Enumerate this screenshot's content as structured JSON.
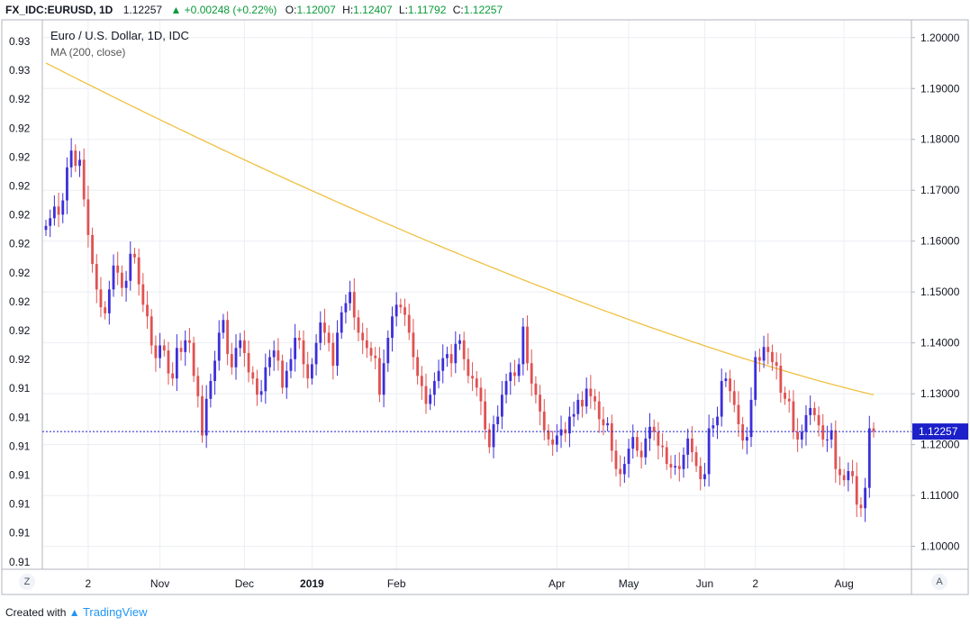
{
  "header": {
    "symbol": "FX_IDC:EURUSD, 1D",
    "last": "1.12257",
    "change": "+0.00248 (+0.22%)",
    "open_label": "O:",
    "open": "1.12007",
    "high_label": "H:",
    "high": "1.12407",
    "low_label": "L:",
    "low": "1.11792",
    "close_label": "C:",
    "close": "1.12257"
  },
  "legend": {
    "title": "Euro / U.S. Dollar, 1D, IDC",
    "indicator": "MA (200, close)"
  },
  "colors": {
    "up": "#3d2fd8",
    "down": "#e05252",
    "ma": "#f0c040",
    "price_tag": "#1c20c9",
    "grid": "#ebeef3"
  },
  "chart_data": {
    "type": "candlestick",
    "title": "Euro / U.S. Dollar, 1D, IDC",
    "left_axis_ticks": [
      "0.93",
      "0.93",
      "0.92",
      "0.92",
      "0.92",
      "0.92",
      "0.92",
      "0.92",
      "0.92",
      "0.92",
      "0.92",
      "0.92",
      "0.91",
      "0.91",
      "0.91",
      "0.91",
      "0.91",
      "0.91",
      "0.91"
    ],
    "right_axis_ticks": [
      "1.20000",
      "1.19000",
      "1.18000",
      "1.17000",
      "1.16000",
      "1.15000",
      "1.14000",
      "1.13000",
      "1.12000",
      "1.11000",
      "1.10000"
    ],
    "ylim": [
      1.0955,
      1.2035
    ],
    "x_ticks": [
      {
        "label": "2",
        "index": 10
      },
      {
        "label": "Nov",
        "index": 27
      },
      {
        "label": "Dec",
        "index": 47
      },
      {
        "label": "2019",
        "index": 63
      },
      {
        "label": "Feb",
        "index": 83
      },
      {
        "label": "Apr",
        "index": 121
      },
      {
        "label": "May",
        "index": 138
      },
      {
        "label": "Jun",
        "index": 156
      },
      {
        "label": "2",
        "index": 168
      },
      {
        "label": "Aug",
        "index": 189
      }
    ],
    "last_price": 1.12257,
    "last_price_label": "1.12257",
    "closes": [
      1.163,
      1.1645,
      1.1668,
      1.1652,
      1.168,
      1.1745,
      1.1778,
      1.1748,
      1.176,
      1.1682,
      1.1612,
      1.1555,
      1.1505,
      1.147,
      1.1458,
      1.1505,
      1.1552,
      1.1538,
      1.1508,
      1.1522,
      1.1575,
      1.1568,
      1.1515,
      1.1475,
      1.1452,
      1.1395,
      1.137,
      1.1395,
      1.1385,
      1.134,
      1.133,
      1.139,
      1.1382,
      1.1405,
      1.14,
      1.1335,
      1.1295,
      1.1218,
      1.129,
      1.1325,
      1.1365,
      1.142,
      1.1445,
      1.1378,
      1.1352,
      1.139,
      1.1405,
      1.138,
      1.1342,
      1.133,
      1.1298,
      1.1305,
      1.1352,
      1.1372,
      1.1385,
      1.1365,
      1.1312,
      1.1345,
      1.1368,
      1.141,
      1.1405,
      1.1358,
      1.133,
      1.1358,
      1.14,
      1.144,
      1.142,
      1.14,
      1.1355,
      1.142,
      1.146,
      1.1478,
      1.15,
      1.145,
      1.142,
      1.1405,
      1.139,
      1.1375,
      1.137,
      1.1298,
      1.136,
      1.141,
      1.1452,
      1.1475,
      1.147,
      1.1455,
      1.142,
      1.1372,
      1.1335,
      1.1315,
      1.128,
      1.1298,
      1.1325,
      1.1345,
      1.137,
      1.1378,
      1.136,
      1.1398,
      1.1405,
      1.1368,
      1.1335,
      1.133,
      1.1312,
      1.1285,
      1.123,
      1.1195,
      1.124,
      1.1255,
      1.1298,
      1.1325,
      1.1342,
      1.1335,
      1.1358,
      1.1432,
      1.136,
      1.132,
      1.1298,
      1.1265,
      1.1228,
      1.121,
      1.12,
      1.1218,
      1.123,
      1.1222,
      1.1255,
      1.126,
      1.1288,
      1.1275,
      1.131,
      1.1295,
      1.1285,
      1.125,
      1.1238,
      1.1242,
      1.1188,
      1.1152,
      1.1142,
      1.1162,
      1.1192,
      1.1215,
      1.1188,
      1.1175,
      1.1212,
      1.1235,
      1.1225,
      1.1198,
      1.1195,
      1.1162,
      1.1155,
      1.1158,
      1.1152,
      1.118,
      1.1212,
      1.1185,
      1.1158,
      1.1132,
      1.1142,
      1.1232,
      1.1238,
      1.1255,
      1.1325,
      1.133,
      1.1305,
      1.1278,
      1.124,
      1.1208,
      1.1215,
      1.1288,
      1.1372,
      1.1365,
      1.1392,
      1.1382,
      1.1362,
      1.1355,
      1.1302,
      1.129,
      1.1285,
      1.1225,
      1.121,
      1.1225,
      1.1258,
      1.1272,
      1.1258,
      1.1238,
      1.121,
      1.121,
      1.1228,
      1.1152,
      1.114,
      1.113,
      1.1148,
      1.1138,
      1.1082,
      1.1075,
      1.1115,
      1.1232,
      1.1226
    ]
  }
}
